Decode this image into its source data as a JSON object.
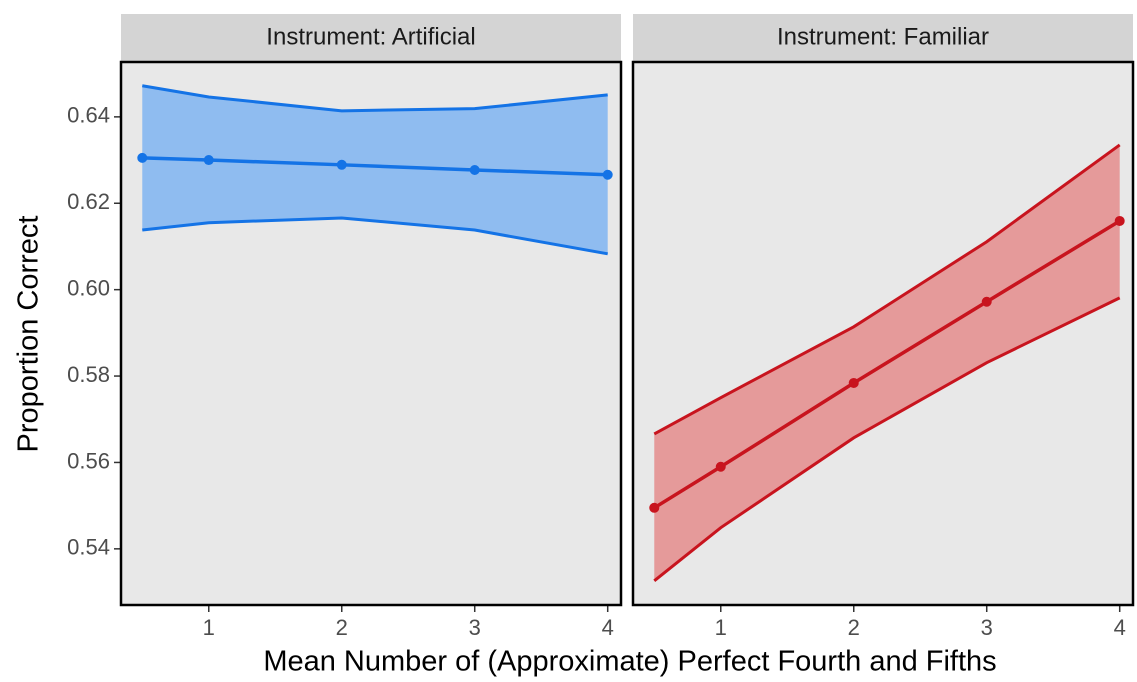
{
  "xlabel": "Mean Number of (Approximate) Perfect Fourth and Fifths",
  "ylabel": "Proportion Correct",
  "chart_data": [
    {
      "type": "line",
      "title": "Instrument: Artificial",
      "x": [
        0.5,
        1,
        2,
        3,
        4
      ],
      "values": [
        0.6305,
        0.63,
        0.6289,
        0.6277,
        0.6266
      ],
      "upper": [
        0.6472,
        0.6446,
        0.6414,
        0.6419,
        0.6451
      ],
      "lower": [
        0.6138,
        0.6155,
        0.6166,
        0.6138,
        0.6083
      ],
      "color": "#1473e6",
      "fill": "#8fbcf0",
      "xlim": [
        0.34,
        4.1
      ],
      "xticks": [
        1,
        2,
        3,
        4
      ],
      "ylim": [
        0.527,
        0.6527
      ],
      "yticks": [
        {
          "value": 0.54,
          "label": "0.54"
        },
        {
          "value": 0.56,
          "label": "0.56"
        },
        {
          "value": 0.58,
          "label": "0.58"
        },
        {
          "value": 0.6,
          "label": "0.60"
        },
        {
          "value": 0.62,
          "label": "0.62"
        },
        {
          "value": 0.64,
          "label": "0.64"
        }
      ]
    },
    {
      "type": "line",
      "title": "Instrument: Familiar",
      "x": [
        0.5,
        1,
        2,
        3,
        4
      ],
      "values": [
        0.5495,
        0.559,
        0.5784,
        0.5972,
        0.6159
      ],
      "upper": [
        0.5666,
        0.575,
        0.5914,
        0.6111,
        0.6335
      ],
      "lower": [
        0.5326,
        0.5449,
        0.5657,
        0.5831,
        0.5981
      ],
      "color": "#c8141e",
      "fill": "#e59a9a",
      "xlim": [
        0.34,
        4.1
      ],
      "xticks": [
        1,
        2,
        3,
        4
      ],
      "ylim": [
        0.527,
        0.6527
      ]
    }
  ]
}
